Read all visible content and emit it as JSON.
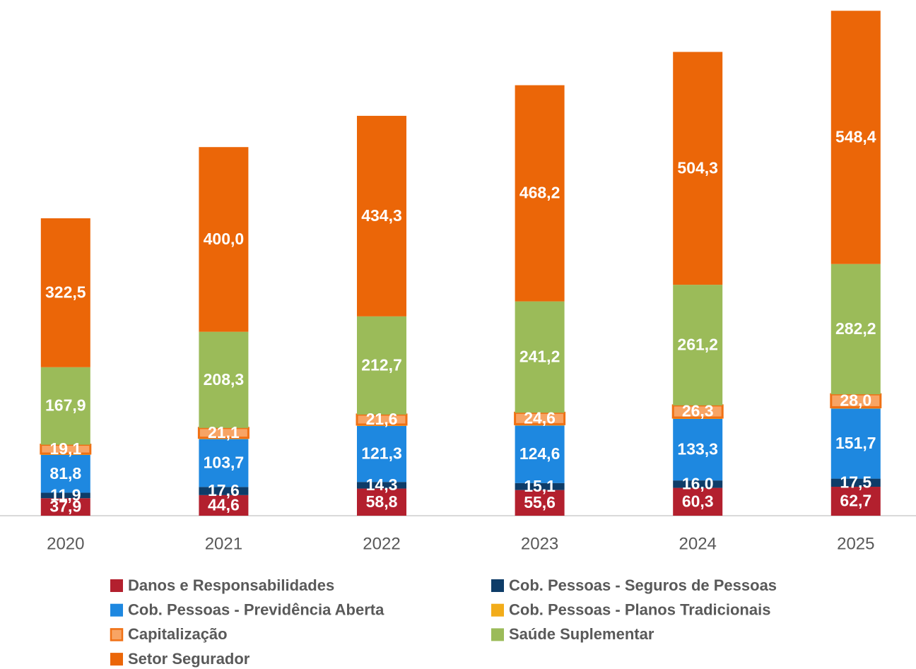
{
  "chart_data": {
    "type": "stacked_bar",
    "categories": [
      "2020",
      "2021",
      "2022",
      "2023",
      "2024",
      "2025"
    ],
    "ylim": [
      0,
      1100
    ],
    "series": [
      {
        "name": "Danos e Responsabilidades",
        "color": "#B3202E",
        "values": [
          37.9,
          44.6,
          58.8,
          55.6,
          60.3,
          62.7
        ],
        "value_labels": [
          "37,9",
          "44,6",
          "58,8",
          "55,6",
          "60,3",
          "62,7"
        ]
      },
      {
        "name": "Cob. Pessoas - Seguros de Pessoas",
        "color": "#0E3C68",
        "values": [
          11.9,
          17.6,
          14.3,
          15.1,
          16.0,
          17.5
        ],
        "value_labels": [
          "11,9",
          "17,6",
          "14,3",
          "15,1",
          "16,0",
          "17,5"
        ]
      },
      {
        "name": "Cob. Pessoas - Previdência Aberta",
        "color": "#1E88E0",
        "values": [
          81.8,
          103.7,
          121.3,
          124.6,
          133.3,
          151.7
        ],
        "value_labels": [
          "81,8",
          "103,7",
          "121,3",
          "124,6",
          "133,3",
          "151,7"
        ]
      },
      {
        "name": "Cob. Pessoas - Planos Tradicionais",
        "color": "#F2AC1A",
        "values": [
          3,
          3,
          3,
          3,
          3,
          3
        ]
      },
      {
        "name": "Capitalização",
        "color": "#F8A464",
        "stroke": "#F07014",
        "values": [
          19.1,
          21.1,
          21.6,
          24.6,
          26.3,
          28.0
        ],
        "value_labels": [
          "19,1",
          "21,1",
          "21,6",
          "24,6",
          "26,3",
          "28,0"
        ]
      },
      {
        "name": "Saúde Suplementar",
        "color": "#9BBB59",
        "values": [
          167.9,
          208.3,
          212.7,
          241.2,
          261.2,
          282.2
        ],
        "value_labels": [
          "167,9",
          "208,3",
          "212,7",
          "241,2",
          "261,2",
          "282,2"
        ]
      },
      {
        "name": "Setor Segurador",
        "color": "#EB6608",
        "values": [
          322.5,
          400.0,
          434.3,
          468.2,
          504.3,
          548.4
        ],
        "value_labels": [
          "322,5",
          "400,0",
          "434,3",
          "468,2",
          "504,3",
          "548,4"
        ]
      }
    ]
  }
}
